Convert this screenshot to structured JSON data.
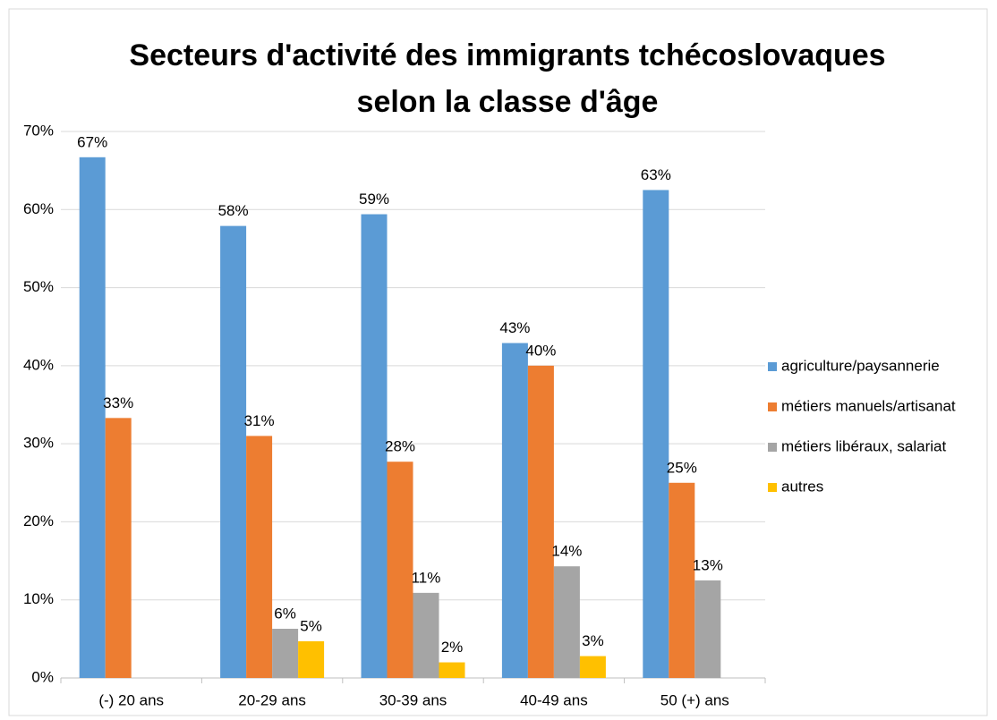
{
  "chart_data": {
    "type": "bar",
    "title": [
      "Secteurs d'activité des immigrants tchécoslovaques",
      "selon la classe d'âge"
    ],
    "categories": [
      "(-) 20 ans",
      "20-29 ans",
      "30-39 ans",
      "40-49 ans",
      "50 (+) ans"
    ],
    "series": [
      {
        "name": "agriculture/paysannerie",
        "color": "#5b9bd5",
        "values": [
          66.7,
          57.9,
          59.4,
          42.9,
          62.5
        ],
        "value_labels": [
          "67%",
          "58%",
          "59%",
          "43%",
          "63%"
        ]
      },
      {
        "name": "métiers manuels/artisanat",
        "color": "#ed7d31",
        "values": [
          33.3,
          31.0,
          27.7,
          40.0,
          25.0
        ],
        "value_labels": [
          "33%",
          "31%",
          "28%",
          "40%",
          "25%"
        ]
      },
      {
        "name": "métiers libéraux, salariat",
        "color": "#a5a5a5",
        "values": [
          null,
          6.3,
          10.9,
          14.3,
          12.5
        ],
        "value_labels": [
          null,
          "6%",
          "11%",
          "14%",
          "13%"
        ]
      },
      {
        "name": "autres",
        "color": "#ffc000",
        "values": [
          null,
          4.7,
          2.0,
          2.8,
          null
        ],
        "value_labels": [
          null,
          "5%",
          "2%",
          "3%",
          null
        ]
      }
    ],
    "ylim": [
      0,
      70
    ],
    "yticks": [
      {
        "value": 0,
        "label": "0%"
      },
      {
        "value": 10,
        "label": "10%"
      },
      {
        "value": 20,
        "label": "20%"
      },
      {
        "value": 30,
        "label": "30%"
      },
      {
        "value": 40,
        "label": "40%"
      },
      {
        "value": 50,
        "label": "50%"
      },
      {
        "value": 60,
        "label": "60%"
      },
      {
        "value": 70,
        "label": "70%"
      }
    ],
    "grid": true,
    "legend": "right"
  }
}
